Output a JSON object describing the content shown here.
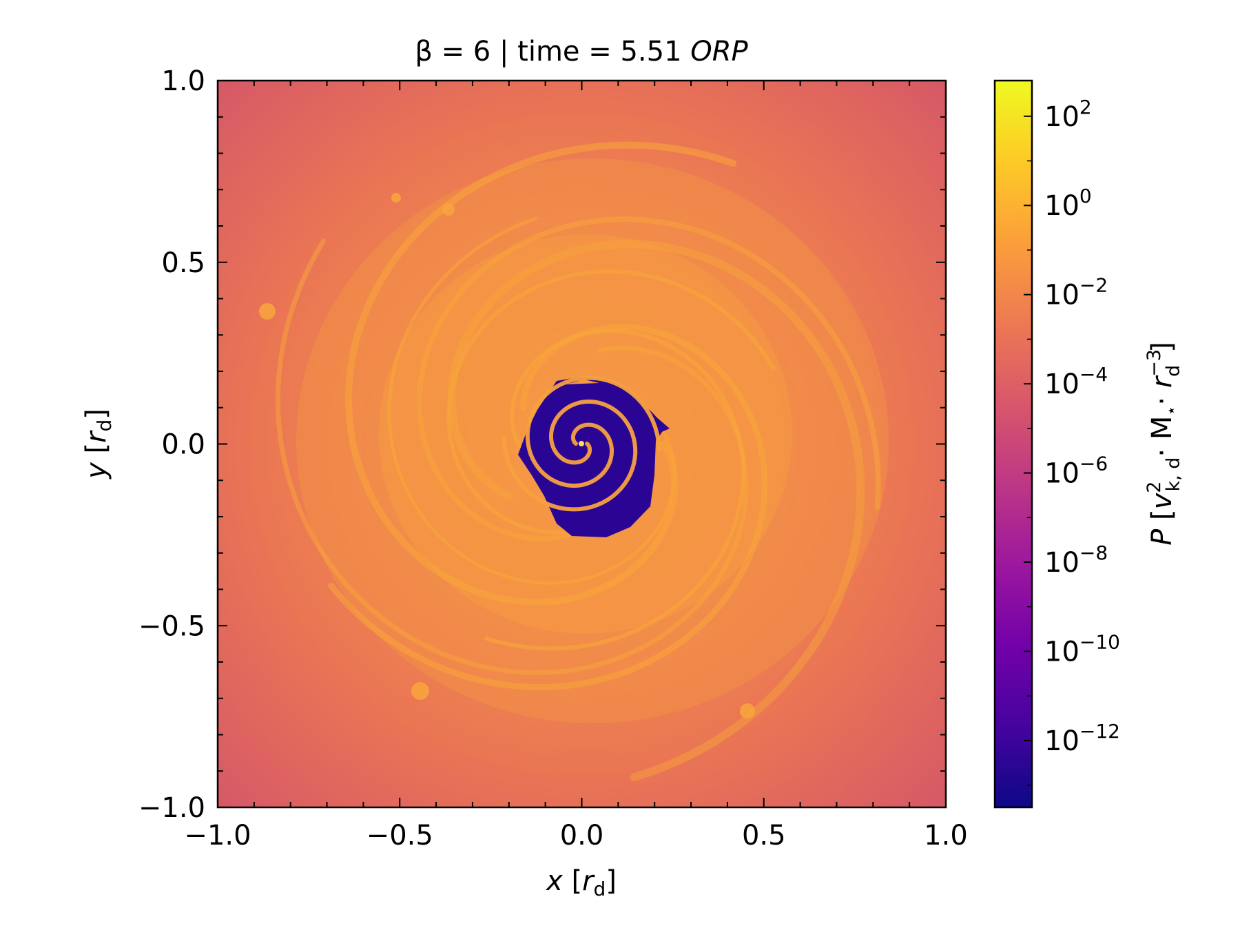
{
  "chart_data": {
    "type": "heatmap",
    "title": {
      "prefix": "β = 6 | time = 5.51 ",
      "suffix": "ORP"
    },
    "xlabel": {
      "var": "x",
      "open": " [",
      "unit": "r",
      "sub": "d",
      "close": "]"
    },
    "ylabel": {
      "var": "y",
      "open": " [",
      "unit": "r",
      "sub": "d",
      "close": "]"
    },
    "xlim": [
      -1.0,
      1.0
    ],
    "ylim": [
      -1.0,
      1.0
    ],
    "x_ticks": [
      {
        "value": -1.0,
        "label": "−1.0"
      },
      {
        "value": -0.5,
        "label": "−0.5"
      },
      {
        "value": 0.0,
        "label": "0.0"
      },
      {
        "value": 0.5,
        "label": "0.5"
      },
      {
        "value": 1.0,
        "label": "1.0"
      }
    ],
    "y_ticks": [
      {
        "value": -1.0,
        "label": "−1.0"
      },
      {
        "value": -0.5,
        "label": "−0.5"
      },
      {
        "value": 0.0,
        "label": "0.0"
      },
      {
        "value": 0.5,
        "label": "0.5"
      },
      {
        "value": 1.0,
        "label": "1.0"
      }
    ],
    "minor_tick_step": 0.1,
    "grid": false,
    "colormap": "plasma",
    "colormap_stops": [
      "#0d0887",
      "#46039f",
      "#7201a8",
      "#9c179e",
      "#bd3786",
      "#d8576b",
      "#ed7953",
      "#fb9f3a",
      "#fdca26",
      "#f0f921"
    ],
    "colorbar": {
      "scale": "log",
      "range_exp": [
        -13.5,
        2.8
      ],
      "ticks": [
        {
          "exp": -12,
          "base": "10",
          "sup": "−12"
        },
        {
          "exp": -10,
          "base": "10",
          "sup": "−10"
        },
        {
          "exp": -8,
          "base": "10",
          "sup": "−8"
        },
        {
          "exp": -6,
          "base": "10",
          "sup": "−6"
        },
        {
          "exp": -4,
          "base": "10",
          "sup": "−4"
        },
        {
          "exp": -2,
          "base": "10",
          "sup": "−2"
        },
        {
          "exp": 0,
          "base": "10",
          "sup": "0"
        },
        {
          "exp": 2,
          "base": "10",
          "sup": "2"
        }
      ],
      "label": {
        "var": "P",
        "open": " [",
        "v": "v",
        "v_sup": "2",
        "v_sub": "k, d",
        "mid": "· M",
        "star": "⋆",
        "dot": "· ",
        "r": "r",
        "r_sup": "−3",
        "r_sub": "d",
        "close": "]"
      }
    },
    "field_description_colors": {
      "outer_background": "#d8576b",
      "disk_body": "#ec7a50",
      "spiral_arms": "#f9a03c",
      "inner_cavity": "#2a0593"
    }
  }
}
